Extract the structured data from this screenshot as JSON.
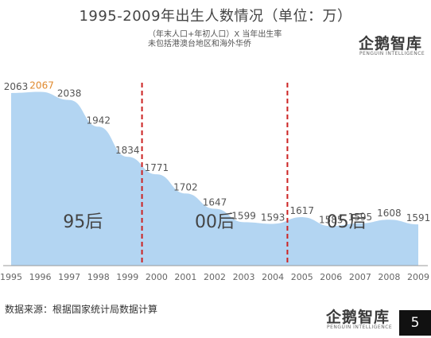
{
  "title": "1995-2009年出生人数情况（单位：万）",
  "notes": [
    "（年末人口+年初人口）X 当年出生率",
    "未包括港澳台地区和海外华侨"
  ],
  "logo": {
    "name": "企鹅智库",
    "sub": "PENGUIN INTELLIGENCE"
  },
  "source": "数据来源：根据国家统计局数据计算",
  "page_number": "5",
  "colors": {
    "area": "#b3d5f2",
    "divider": "#cc2222",
    "highlight_label": "#e08a2e",
    "label": "#555555"
  },
  "chart_data": {
    "type": "area",
    "x": [
      "1995",
      "1996",
      "1997",
      "1998",
      "1999",
      "2000",
      "2001",
      "2002",
      "2003",
      "2004",
      "2005",
      "2006",
      "2007",
      "2008",
      "2009"
    ],
    "values": [
      2063,
      2067,
      2038,
      1942,
      1834,
      1771,
      1702,
      1647,
      1599,
      1593,
      1617,
      1585,
      1595,
      1608,
      1591
    ],
    "highlight_index": 1,
    "ylim": [
      0,
      2200
    ],
    "dividers_after": [
      "1999",
      "2004"
    ],
    "segments": [
      {
        "label": "95后"
      },
      {
        "label": "00后"
      },
      {
        "label": "05后"
      }
    ],
    "grid": false
  }
}
